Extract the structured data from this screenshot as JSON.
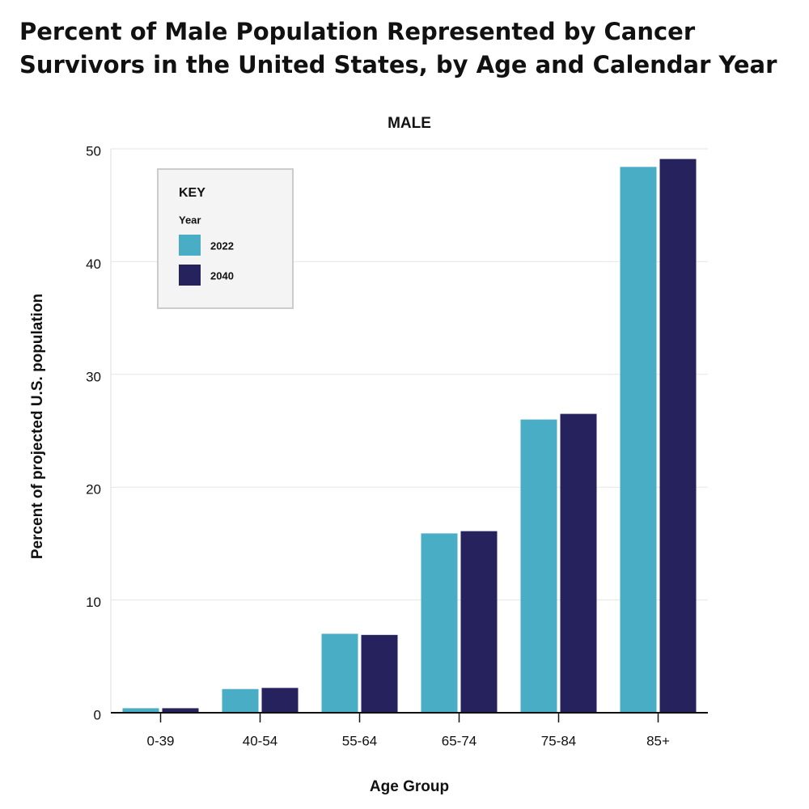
{
  "chart_data": {
    "type": "bar",
    "title_lines": [
      "Percent of Male Population Represented by Cancer",
      "Survivors in the United States, by Age and Calendar Year"
    ],
    "subtitle": "MALE",
    "x_label": "Age Group",
    "y_label": "Percent of projected U.S. population",
    "categories": [
      "0-39",
      "40-54",
      "55-64",
      "65-74",
      "75-84",
      "85+"
    ],
    "series": [
      {
        "name": "2022",
        "color": "#4aadc6",
        "values": [
          0.4,
          2.1,
          7.0,
          15.9,
          26.0,
          48.4
        ]
      },
      {
        "name": "2040",
        "color": "#25225e",
        "values": [
          0.4,
          2.2,
          6.9,
          16.1,
          26.5,
          49.1
        ]
      }
    ],
    "legend_title": "KEY",
    "legend_subtitle": "Year",
    "legend_position": "upper left",
    "ylim": [
      0,
      50
    ],
    "yticks": [
      0,
      10,
      20,
      30,
      40,
      50
    ],
    "grid": true
  }
}
